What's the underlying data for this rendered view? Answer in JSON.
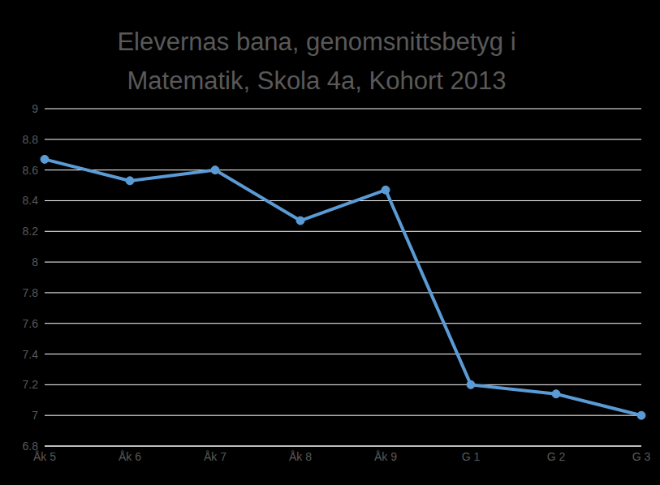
{
  "chart_data": {
    "type": "line",
    "title": "Elevernas bana, genomsnittsbetyg i Matematik, Skola 4a,  Kohort 2013",
    "categories": [
      "Åk 5",
      "Åk 6",
      "Åk 7",
      "Åk 8",
      "Åk 9",
      "G 1",
      "G 2",
      "G 3"
    ],
    "values": [
      8.67,
      8.53,
      8.6,
      8.27,
      8.47,
      7.2,
      7.14,
      7.0
    ],
    "color": "#5b9bd5",
    "marker": "circle",
    "ylim": [
      6.8,
      9
    ],
    "yticks": [
      6.8,
      7,
      7.2,
      7.4,
      7.6,
      7.8,
      8,
      8.2,
      8.4,
      8.6,
      8.8,
      9
    ],
    "grid": true
  }
}
